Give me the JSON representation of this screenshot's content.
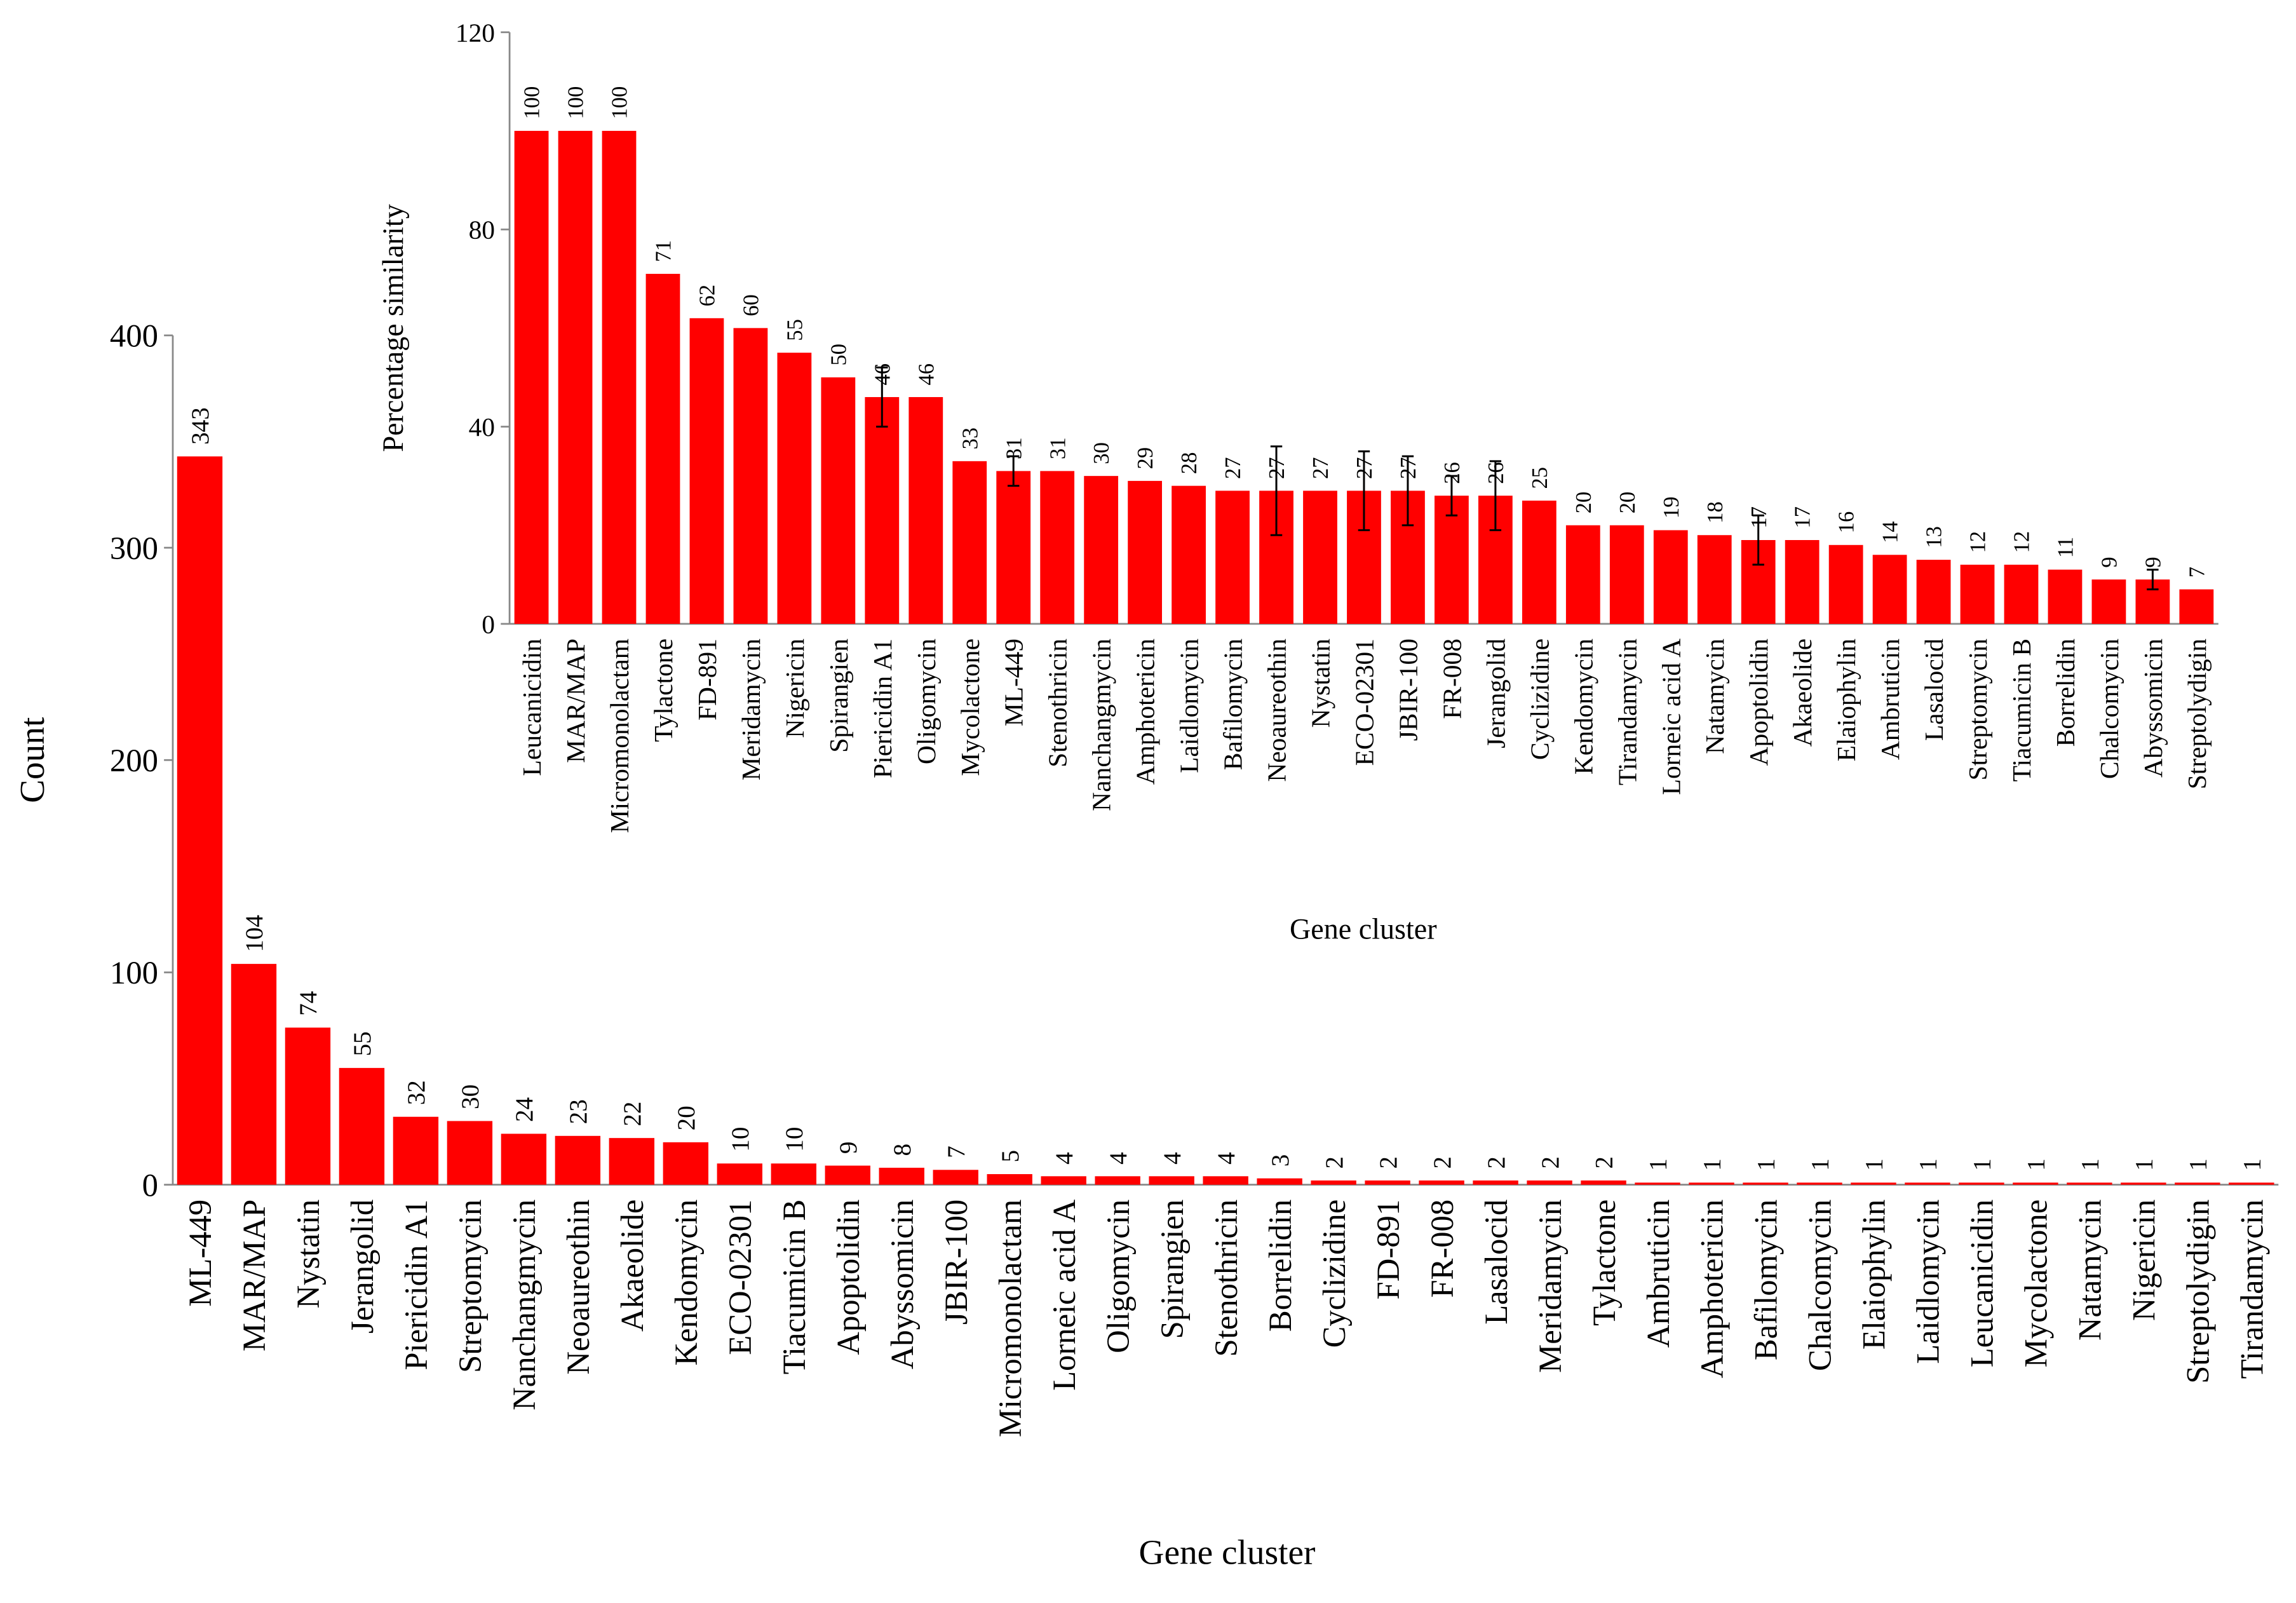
{
  "chart_data": [
    {
      "type": "bar",
      "ylabel": "Count",
      "xlabel": "Gene cluster",
      "color": "#ff0000",
      "categories": [
        "ML-449",
        "MAR/MAP",
        "Nystatin",
        "Jerangolid",
        "Piericidin A1",
        "Streptomycin",
        "Nanchangmycin",
        "Neoaureothin",
        "Akaeolide",
        "Kendomycin",
        "ECO-02301",
        "Tiacumicin B",
        "Apoptolidin",
        "Abyssomicin",
        "JBIR-100",
        "Micromonolactam",
        "Lorneic acid A",
        "Oligomycin",
        "Spirangien",
        "Stenothricin",
        "Borrelidin",
        "Cyclizidine",
        "FD-891",
        "FR-008",
        "Lasalocid",
        "Meridamycin",
        "Tylactone",
        "Ambruticin",
        "Amphotericin",
        "Bafilomycin",
        "Chalcomycin",
        "Elaiophylin",
        "Laidlomycin",
        "Leucanicidin",
        "Mycolactone",
        "Natamycin",
        "Nigericin",
        "Streptolydigin",
        "Tirandamycin"
      ],
      "values": [
        343,
        104,
        74,
        55,
        32,
        30,
        24,
        23,
        22,
        20,
        10,
        10,
        9,
        8,
        7,
        5,
        4,
        4,
        4,
        4,
        3,
        2,
        2,
        2,
        2,
        2,
        2,
        1,
        1,
        1,
        1,
        1,
        1,
        1,
        1,
        1,
        1,
        1,
        1
      ],
      "ylim": [
        0,
        400
      ],
      "yticks": [
        0,
        100,
        200,
        300,
        400
      ]
    },
    {
      "type": "bar",
      "ylabel": "Percentage similarity",
      "xlabel": "Gene cluster",
      "color": "#ff0000",
      "categories": [
        "Leucanicidin",
        "MAR/MAP",
        "Micromonolactam",
        "Tylactone",
        "FD-891",
        "Meridamycin",
        "Nigericin",
        "Spirangien",
        "Piericidin A1",
        "Oligomycin",
        "Mycolactone",
        "ML-449",
        "Stenothricin",
        "Nanchangmycin",
        "Amphotericin",
        "Laidlomycin",
        "Bafilomycin",
        "Neoaureothin",
        "Nystatin",
        "ECO-02301",
        "JBIR-100",
        "FR-008",
        "Jerangolid",
        "Cyclizidine",
        "Kendomycin",
        "Tirandamycin",
        "Lorneic acid A",
        "Natamycin",
        "Apoptolidin",
        "Akaeolide",
        "Elaiophylin",
        "Ambruticin",
        "Lasalocid",
        "Streptomycin",
        "Tiacumicin B",
        "Borrelidin",
        "Chalcomycin",
        "Abyssomicin",
        "Streptolydigin"
      ],
      "values": [
        100,
        100,
        100,
        71,
        62,
        60,
        55,
        50,
        46,
        46,
        33,
        31,
        31,
        30,
        29,
        28,
        27,
        27,
        27,
        27,
        27,
        26,
        26,
        25,
        20,
        20,
        19,
        18,
        17,
        17,
        16,
        14,
        13,
        12,
        12,
        11,
        9,
        9,
        7
      ],
      "errors": [
        null,
        null,
        null,
        null,
        null,
        null,
        null,
        null,
        6,
        null,
        null,
        3,
        null,
        null,
        null,
        null,
        null,
        9,
        null,
        8,
        7,
        4,
        7,
        null,
        null,
        null,
        null,
        null,
        5,
        null,
        null,
        null,
        null,
        null,
        null,
        null,
        null,
        2,
        null
      ],
      "ylim": [
        0,
        120
      ],
      "yticks": [
        0,
        40,
        80,
        120
      ]
    }
  ]
}
